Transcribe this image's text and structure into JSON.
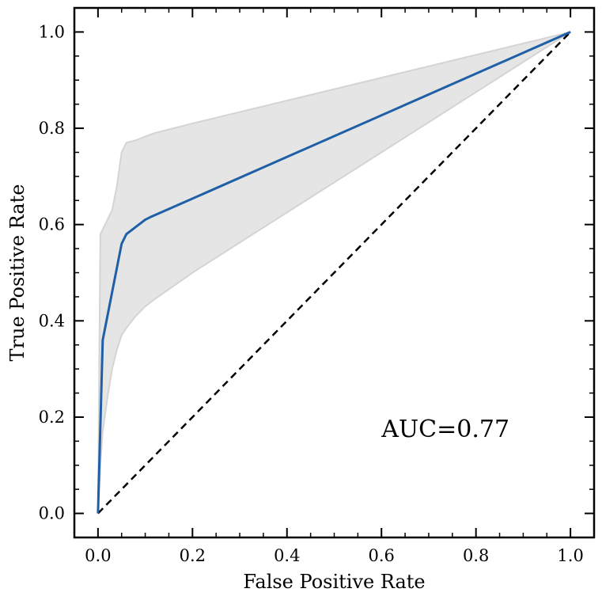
{
  "chart_data": {
    "type": "line",
    "title": "",
    "xlabel": "False Positive Rate",
    "ylabel": "True Positive Rate",
    "xlim": [
      -0.05,
      1.05
    ],
    "ylim": [
      -0.05,
      1.05
    ],
    "xticks": [
      0.0,
      0.2,
      0.4,
      0.6,
      0.8,
      1.0
    ],
    "yticks": [
      0.0,
      0.2,
      0.4,
      0.6,
      0.8,
      1.0
    ],
    "xtick_labels": [
      "0.0",
      "0.2",
      "0.4",
      "0.6",
      "0.8",
      "1.0"
    ],
    "ytick_labels": [
      "0.0",
      "0.2",
      "0.4",
      "0.6",
      "0.8",
      "1.0"
    ],
    "grid": false,
    "series": [
      {
        "color": "#1f5fa6",
        "x": [
          0.0,
          0.01,
          0.05,
          0.06,
          0.1,
          0.11,
          1.0
        ],
        "y": [
          0.0,
          0.36,
          0.56,
          0.58,
          0.61,
          0.615,
          1.0
        ]
      }
    ],
    "confidence_band": {
      "color": "#e5e5e5",
      "x": [
        0.0,
        0.005,
        0.01,
        0.02,
        0.03,
        0.04,
        0.05,
        0.06,
        0.08,
        0.1,
        0.12,
        0.2,
        1.0
      ],
      "upper": [
        0.0,
        0.58,
        0.59,
        0.61,
        0.63,
        0.68,
        0.75,
        0.77,
        0.775,
        0.783,
        0.79,
        0.81,
        1.0
      ],
      "lower": [
        0.0,
        0.1,
        0.17,
        0.24,
        0.3,
        0.34,
        0.37,
        0.385,
        0.41,
        0.43,
        0.445,
        0.5,
        1.0
      ]
    },
    "reference_line": {
      "x": [
        0.0,
        1.0
      ],
      "y": [
        0.0,
        1.0
      ],
      "style": "dashed",
      "color": "#000000"
    },
    "annotation": {
      "text": "AUC=0.77",
      "x": 0.6,
      "y": 0.175
    }
  }
}
